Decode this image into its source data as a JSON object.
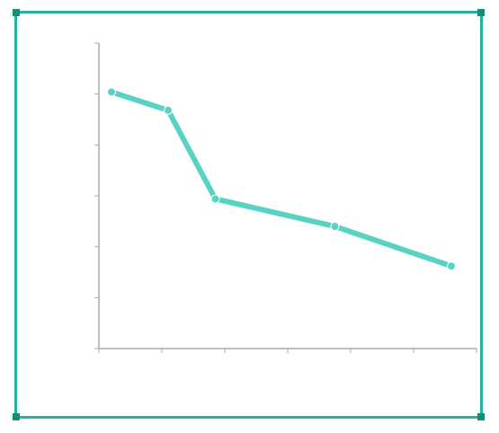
{
  "chart_data": {
    "type": "line",
    "title": "",
    "xlabel": "",
    "ylabel": "",
    "xlim": [
      0,
      600
    ],
    "ylim": [
      0,
      100
    ],
    "xticks": [
      0,
      100,
      200,
      300,
      400,
      500,
      600
    ],
    "yticks": [
      0,
      10,
      20,
      30,
      40,
      50,
      60
    ],
    "grid": false,
    "series": [
      {
        "color": "#4fd0bf",
        "x": [
          20,
          110,
          185,
          375,
          560
        ],
        "y": [
          84,
          78,
          49,
          40,
          27
        ],
        "labels": [
          "",
          "",
          "",
          "",
          ""
        ]
      }
    ]
  },
  "frame": {
    "color": "#26b39d",
    "accent": "#0f8f7b"
  }
}
